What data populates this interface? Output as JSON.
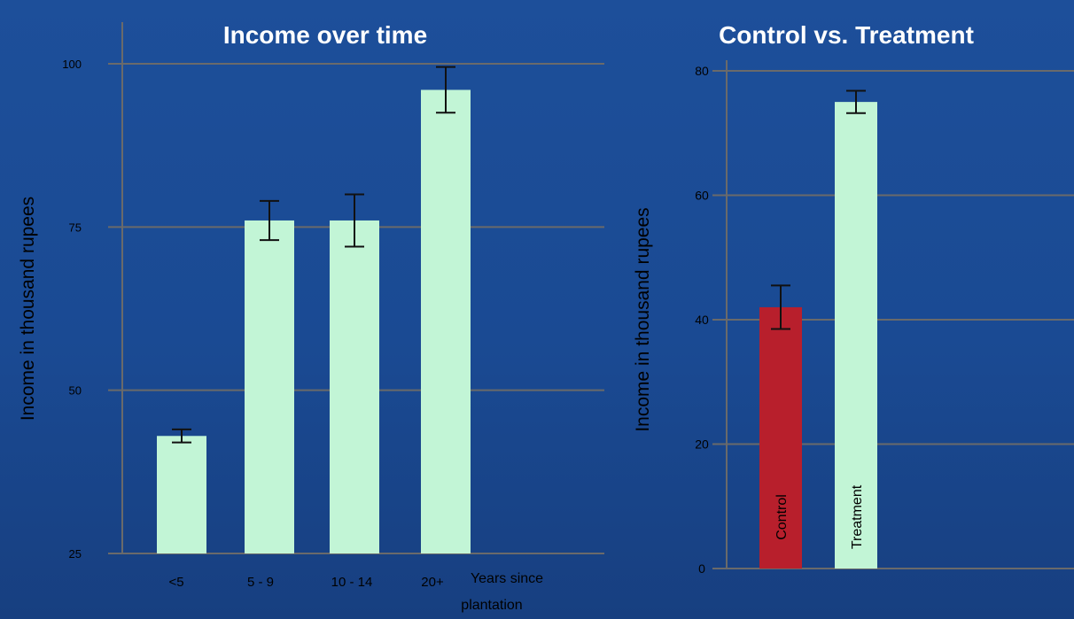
{
  "colors": {
    "background": "#1b4b94",
    "grid": "#6a6a6a",
    "light_bar": "#c2f5d6",
    "control_bar": "#b81f2c",
    "text": "#000000",
    "title": "#ffffff"
  },
  "chart_data": [
    {
      "type": "bar",
      "title": "Income over time",
      "xlabel": "Years since plantation",
      "ylabel": "Income in thousand rupees",
      "ylim": [
        25,
        100
      ],
      "yticks": [
        "25",
        "50",
        "75",
        "100"
      ],
      "categories": [
        "<5",
        "5 - 9",
        "10 - 14",
        "20+"
      ],
      "values": [
        43,
        76,
        76,
        96
      ],
      "errors": [
        1,
        3,
        4,
        3.5
      ],
      "grid": true
    },
    {
      "type": "bar",
      "title": "Control vs. Treatment",
      "xlabel": "",
      "ylabel": "Income in thousand rupees",
      "ylim": [
        0,
        80
      ],
      "yticks": [
        "0",
        "20",
        "40",
        "60",
        "80"
      ],
      "categories": [
        "Control",
        "Treatment"
      ],
      "values": [
        42,
        75
      ],
      "errors": [
        3.5,
        1.8
      ],
      "grid": true
    }
  ]
}
